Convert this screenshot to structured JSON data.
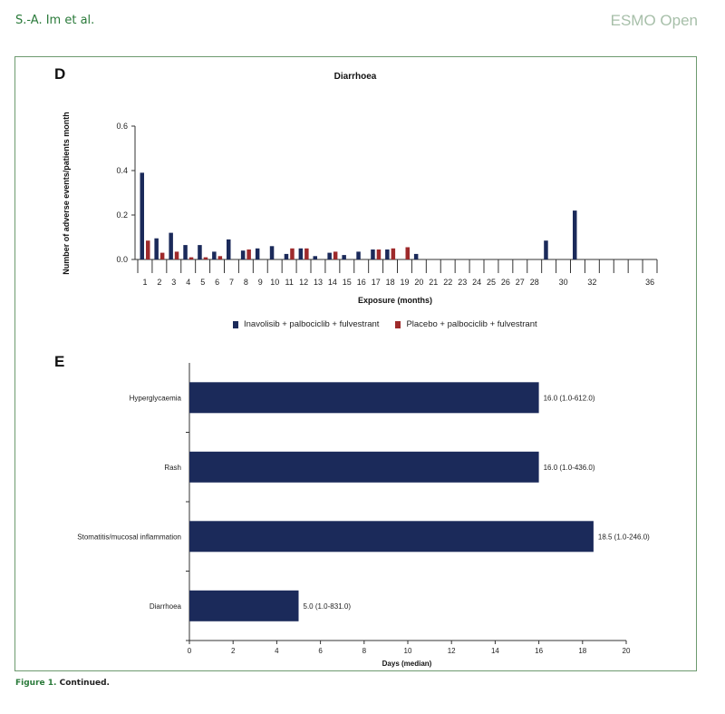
{
  "header": {
    "authors": "S.-A. Im et al.",
    "journal": "ESMO Open"
  },
  "caption": {
    "label": "Figure 1.",
    "text": "Continued."
  },
  "colors": {
    "inavolisib": "#1b2a5a",
    "placebo": "#9e2a2b",
    "frame": "#6d9a6f",
    "accent": "#2a7a3a"
  },
  "chart_data": [
    {
      "panel": "D",
      "type": "bar",
      "title": "Diarrhoea",
      "xlabel": "Exposure (months)",
      "ylabel": "Number of adverse events/patients month",
      "ylim": [
        0,
        0.6
      ],
      "yticks": [
        "0.0",
        "0.2",
        "0.4",
        "0.6"
      ],
      "categories": [
        "1",
        "2",
        "3",
        "4",
        "5",
        "6",
        "7",
        "8",
        "9",
        "10",
        "11",
        "12",
        "13",
        "14",
        "15",
        "16",
        "17",
        "18",
        "19",
        "20",
        "21",
        "22",
        "23",
        "24",
        "25",
        "26",
        "27",
        "28",
        "29",
        "30",
        "31",
        "32",
        "33",
        "34",
        "35",
        "36"
      ],
      "tick_labels": [
        "1",
        "2",
        "3",
        "4",
        "5",
        "6",
        "7",
        "8",
        "9",
        "10",
        "11",
        "12",
        "13",
        "14",
        "15",
        "16",
        "17",
        "18",
        "19",
        "20",
        "21",
        "22",
        "23",
        "24",
        "25",
        "26",
        "27",
        "28",
        "30",
        "32",
        "36"
      ],
      "series": [
        {
          "name": "Inavolisib + palbociclib + fulvestrant",
          "values": [
            0.39,
            0.095,
            0.12,
            0.065,
            0.065,
            0.035,
            0.09,
            0.04,
            0.05,
            0.06,
            0.025,
            0.05,
            0.015,
            0.03,
            0.02,
            0.035,
            0.045,
            0.045,
            0,
            0.025,
            0,
            0,
            0,
            0,
            0,
            0,
            0,
            0,
            0.085,
            0,
            0.22,
            0,
            0,
            0,
            0,
            0
          ]
        },
        {
          "name": "Placebo + palbociclib + fulvestrant",
          "values": [
            0.085,
            0.03,
            0.035,
            0.01,
            0.01,
            0.015,
            0,
            0.045,
            0,
            0,
            0.05,
            0.05,
            0,
            0.035,
            0,
            0,
            0.045,
            0.05,
            0.055,
            0,
            0,
            0,
            0,
            0,
            0,
            0,
            0,
            0,
            0,
            0,
            0,
            0,
            0,
            0,
            0,
            0
          ]
        }
      ],
      "legend_position": "bottom",
      "grid": false
    },
    {
      "panel": "E",
      "type": "bar",
      "orientation": "horizontal",
      "xlabel": "Days (median)",
      "xlim": [
        0,
        20
      ],
      "xticks": [
        "0",
        "2",
        "4",
        "6",
        "8",
        "10",
        "12",
        "14",
        "16",
        "18",
        "20"
      ],
      "categories": [
        "Hyperglycaemia",
        "Rash",
        "Stomatitis/mucosal inflammation",
        "Diarrhoea"
      ],
      "values": [
        16.0,
        16.0,
        18.5,
        5.0
      ],
      "data_labels": [
        "16.0 (1.0-612.0)",
        "16.0 (1.0-436.0)",
        "18.5 (1.0-246.0)",
        "5.0 (1.0-831.0)"
      ],
      "grid": false
    }
  ]
}
